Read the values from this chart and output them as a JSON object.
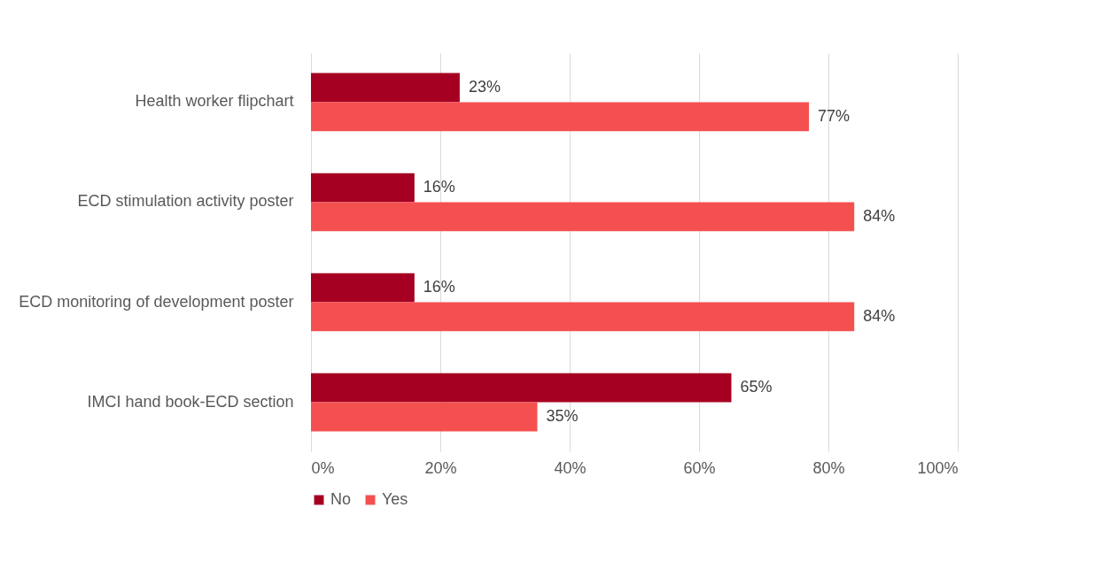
{
  "chart_data": {
    "type": "bar",
    "orientation": "horizontal",
    "categories": [
      "Health worker flipchart",
      "ECD stimulation activity poster",
      "ECD monitoring of development poster",
      "IMCI hand book-ECD section"
    ],
    "series": [
      {
        "name": "No",
        "color": "#a50021",
        "values": [
          23,
          16,
          16,
          65
        ],
        "value_labels": [
          "23%",
          "16%",
          "16%",
          "65%"
        ]
      },
      {
        "name": "Yes",
        "color": "#f55050",
        "values": [
          77,
          84,
          84,
          35
        ],
        "value_labels": [
          "77%",
          "84%",
          "84%",
          "35%"
        ]
      }
    ],
    "xlim": [
      0,
      100
    ],
    "xticks": [
      {
        "value": 0,
        "label": "0%"
      },
      {
        "value": 20,
        "label": "20%"
      },
      {
        "value": 40,
        "label": "40%"
      },
      {
        "value": 60,
        "label": "60%"
      },
      {
        "value": 80,
        "label": "80%"
      },
      {
        "value": 100,
        "label": "100%"
      }
    ],
    "grid": "x",
    "legend": "bottom"
  }
}
